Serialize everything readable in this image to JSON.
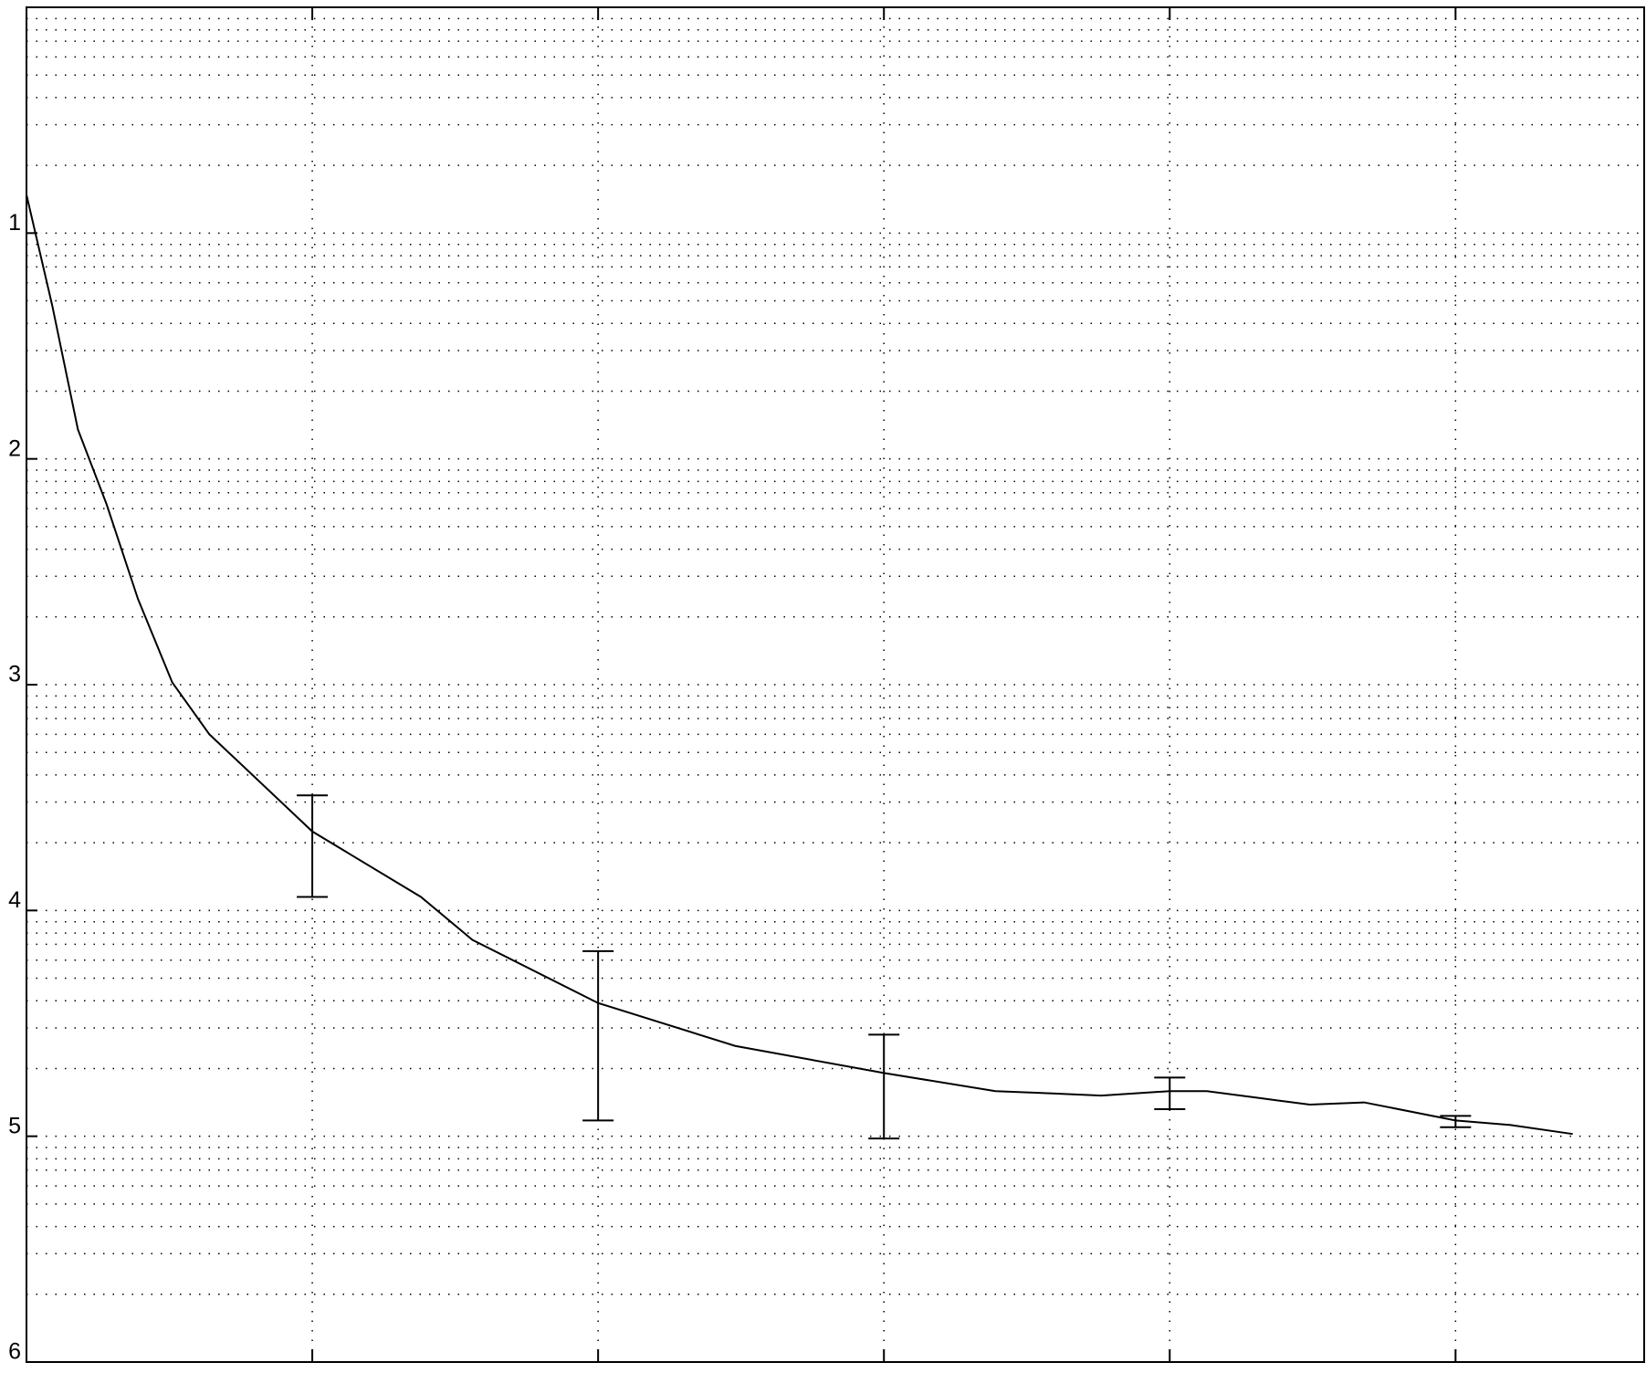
{
  "chart_data": {
    "type": "line",
    "series": [
      {
        "color": "#000000",
        "x": [
          0,
          0.09,
          0.18,
          0.28,
          0.39,
          0.51,
          0.64,
          1,
          1.38,
          1.56,
          2,
          2.48,
          3,
          3.39,
          3.58,
          3.76,
          4,
          4.13,
          4.31,
          4.49,
          4.68,
          5,
          5.19,
          5.41
        ],
        "values": [
          0.83,
          1.32,
          1.87,
          2.2,
          2.62,
          2.99,
          3.22,
          3.65,
          3.94,
          4.13,
          4.41,
          4.6,
          4.72,
          4.8,
          4.81,
          4.82,
          4.8,
          4.8,
          4.83,
          4.86,
          4.85,
          4.93,
          4.95,
          4.99
        ]
      }
    ],
    "error_bars": {
      "x": [
        1,
        2,
        3,
        4,
        5
      ],
      "lower": [
        3.49,
        4.18,
        4.55,
        4.74,
        4.91
      ],
      "upper": [
        3.94,
        4.93,
        5.01,
        4.88,
        4.96
      ]
    },
    "xlim": [
      0,
      5.66
    ],
    "xticks": [
      1,
      2,
      3,
      4,
      5
    ],
    "ylim": [
      0,
      6
    ],
    "y_reversed": true,
    "yticks": [
      1,
      2,
      3,
      4,
      5,
      6
    ],
    "minor_yticks": [
      0.05,
      0.1,
      0.15,
      0.22,
      0.3,
      0.4,
      0.52,
      0.7,
      1.05,
      1.1,
      1.15,
      1.22,
      1.3,
      1.4,
      1.52,
      1.7,
      2.05,
      2.1,
      2.15,
      2.22,
      2.3,
      2.4,
      2.52,
      2.7,
      3.05,
      3.1,
      3.15,
      3.22,
      3.3,
      3.4,
      3.52,
      3.7,
      4.05,
      4.1,
      4.15,
      4.22,
      4.3,
      4.4,
      4.52,
      4.7,
      5.05,
      5.1,
      5.15,
      5.22,
      5.3,
      5.4,
      5.52,
      5.7
    ],
    "grid": true
  }
}
